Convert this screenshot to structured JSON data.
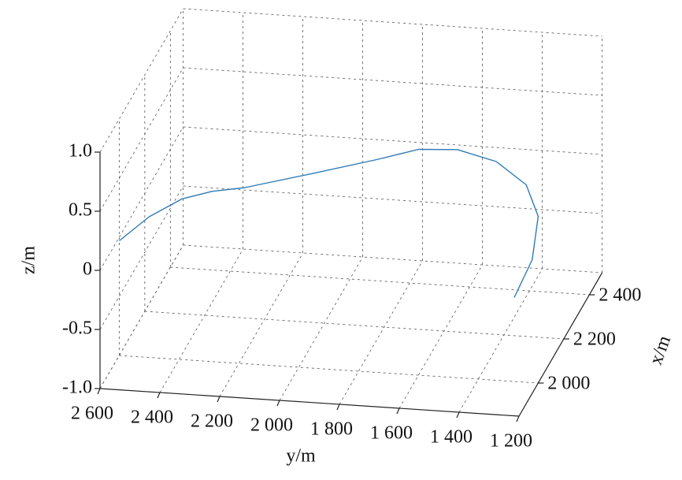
{
  "chart_data": {
    "type": "line3d",
    "x": [
      2000,
      2000,
      2000,
      2000,
      2000,
      2000,
      2000,
      2000,
      2000,
      2000,
      2000,
      2000,
      2000,
      2000
    ],
    "y": [
      2600,
      2500,
      2390,
      2290,
      2180,
      1950,
      1740,
      1600,
      1470,
      1340,
      1240,
      1200,
      1220,
      1280
    ],
    "z": [
      -0.03,
      0.19,
      0.36,
      0.44,
      0.49,
      0.65,
      0.8,
      0.91,
      0.93,
      0.85,
      0.67,
      0.41,
      0.04,
      -0.29
    ],
    "color": "#2f7bb5",
    "xlim": [
      1850,
      2500
    ],
    "ylim": [
      1200,
      2600
    ],
    "zlim": [
      -1,
      1
    ],
    "xticks": [
      {
        "value": 2000,
        "label": "2 000"
      },
      {
        "value": 2200,
        "label": "2 200"
      },
      {
        "value": 2400,
        "label": "2 400"
      }
    ],
    "yticks": [
      {
        "value": 2600,
        "label": "2 600"
      },
      {
        "value": 2400,
        "label": "2 400"
      },
      {
        "value": 2200,
        "label": "2 200"
      },
      {
        "value": 2000,
        "label": "2 000"
      },
      {
        "value": 1800,
        "label": "1 800"
      },
      {
        "value": 1600,
        "label": "1 600"
      },
      {
        "value": 1400,
        "label": "1 400"
      },
      {
        "value": 1200,
        "label": "1 200"
      }
    ],
    "zticks": [
      {
        "value": 1,
        "label": "1.0"
      },
      0.5,
      0,
      -0.5,
      {
        "value": -1,
        "label": "-1.0"
      }
    ],
    "xlabel": "x/m",
    "ylabel": "y/m",
    "zlabel": "z/m",
    "grid": true
  }
}
